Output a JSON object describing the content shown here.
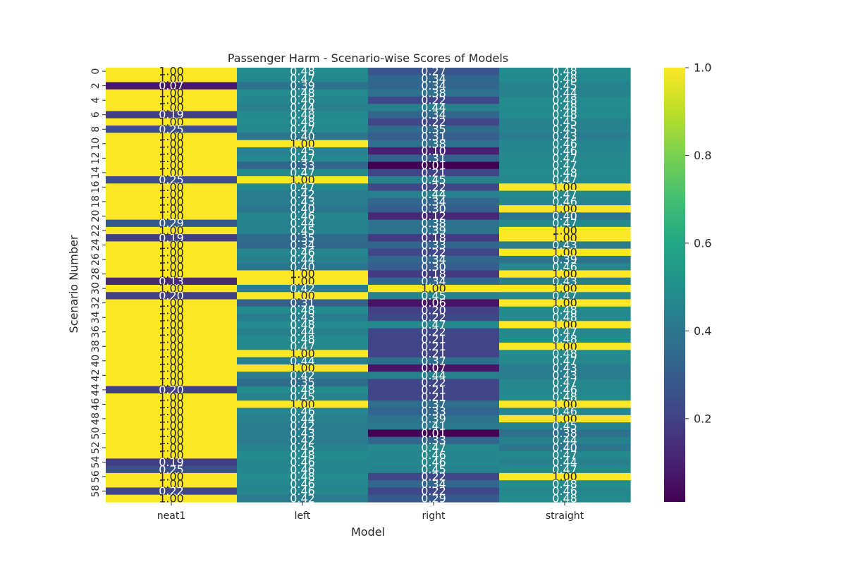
{
  "chart_data": {
    "type": "heatmap",
    "title": "Passenger Harm - Scenario-wise Scores of Models",
    "xlabel": "Model",
    "ylabel": "Scenario Number",
    "columns": [
      "neat1",
      "left",
      "right",
      "straight"
    ],
    "rows": [
      0,
      1,
      2,
      3,
      4,
      5,
      6,
      7,
      8,
      9,
      10,
      11,
      12,
      13,
      14,
      15,
      16,
      17,
      18,
      19,
      20,
      21,
      22,
      23,
      24,
      25,
      26,
      27,
      28,
      29,
      30,
      31,
      32,
      33,
      34,
      35,
      36,
      37,
      38,
      39,
      40,
      41,
      42,
      43,
      44,
      45,
      46,
      47,
      48,
      49,
      50,
      51,
      52,
      53,
      54,
      55,
      56,
      57,
      58,
      59
    ],
    "row_tick_labels": [
      "0",
      "2",
      "4",
      "6",
      "8",
      "10",
      "12",
      "14",
      "16",
      "18",
      "20",
      "22",
      "24",
      "26",
      "28",
      "30",
      "32",
      "34",
      "36",
      "38",
      "40",
      "42",
      "44",
      "46",
      "48",
      "50",
      "52",
      "54",
      "56",
      "58"
    ],
    "values": [
      [
        1.0,
        0.48,
        0.27,
        0.48
      ],
      [
        1.0,
        0.47,
        0.34,
        0.48
      ],
      [
        0.07,
        0.39,
        0.34,
        0.45
      ],
      [
        1.0,
        0.48,
        0.38,
        0.44
      ],
      [
        1.0,
        0.46,
        0.22,
        0.48
      ],
      [
        1.0,
        0.44,
        0.44,
        0.48
      ],
      [
        0.19,
        0.48,
        0.34,
        0.48
      ],
      [
        1.0,
        0.48,
        0.22,
        0.45
      ],
      [
        0.25,
        0.47,
        0.35,
        0.45
      ],
      [
        1.0,
        0.4,
        0.31,
        0.43
      ],
      [
        1.0,
        1.0,
        0.38,
        0.46
      ],
      [
        1.0,
        0.45,
        0.1,
        0.46
      ],
      [
        1.0,
        0.47,
        0.31,
        0.47
      ],
      [
        1.0,
        0.33,
        0.01,
        0.47
      ],
      [
        1.0,
        0.47,
        0.21,
        0.48
      ],
      [
        0.25,
        1.0,
        0.45,
        0.47
      ],
      [
        1.0,
        0.47,
        0.22,
        1.0
      ],
      [
        1.0,
        0.42,
        0.44,
        0.47
      ],
      [
        1.0,
        0.43,
        0.34,
        0.46
      ],
      [
        1.0,
        0.4,
        0.3,
        1.0
      ],
      [
        1.0,
        0.46,
        0.12,
        0.4
      ],
      [
        0.29,
        0.44,
        0.38,
        0.47
      ],
      [
        1.0,
        0.45,
        0.39,
        1.0
      ],
      [
        0.19,
        0.35,
        0.18,
        1.0
      ],
      [
        1.0,
        0.34,
        0.33,
        0.43
      ],
      [
        1.0,
        0.46,
        0.22,
        1.0
      ],
      [
        1.0,
        0.44,
        0.34,
        0.39
      ],
      [
        1.0,
        0.4,
        0.3,
        0.46
      ],
      [
        1.0,
        1.0,
        0.18,
        1.0
      ],
      [
        0.13,
        1.0,
        0.34,
        0.43
      ],
      [
        1.0,
        0.42,
        1.0,
        1.0
      ],
      [
        0.2,
        1.0,
        0.45,
        0.47
      ],
      [
        1.0,
        0.31,
        0.06,
        1.0
      ],
      [
        1.0,
        0.48,
        0.2,
        0.48
      ],
      [
        1.0,
        0.43,
        0.22,
        0.48
      ],
      [
        1.0,
        0.48,
        0.47,
        1.0
      ],
      [
        1.0,
        0.44,
        0.22,
        0.47
      ],
      [
        1.0,
        0.48,
        0.21,
        0.48
      ],
      [
        1.0,
        0.47,
        0.21,
        1.0
      ],
      [
        1.0,
        1.0,
        0.21,
        0.48
      ],
      [
        1.0,
        0.44,
        0.37,
        0.47
      ],
      [
        1.0,
        1.0,
        0.07,
        0.43
      ],
      [
        1.0,
        0.42,
        0.44,
        0.43
      ],
      [
        1.0,
        0.35,
        0.22,
        0.47
      ],
      [
        0.2,
        0.48,
        0.21,
        0.46
      ],
      [
        1.0,
        0.45,
        0.21,
        0.48
      ],
      [
        1.0,
        1.0,
        0.37,
        1.0
      ],
      [
        1.0,
        0.46,
        0.33,
        0.46
      ],
      [
        1.0,
        0.44,
        0.39,
        1.0
      ],
      [
        1.0,
        0.42,
        0.41,
        0.45
      ],
      [
        1.0,
        0.43,
        0.01,
        0.38
      ],
      [
        1.0,
        0.42,
        0.33,
        0.44
      ],
      [
        1.0,
        0.45,
        0.47,
        0.4
      ],
      [
        1.0,
        0.48,
        0.46,
        0.47
      ],
      [
        0.19,
        0.46,
        0.46,
        0.44
      ],
      [
        0.25,
        0.46,
        0.45,
        0.47
      ],
      [
        1.0,
        0.48,
        0.22,
        1.0
      ],
      [
        1.0,
        0.46,
        0.34,
        0.48
      ],
      [
        0.22,
        0.46,
        0.22,
        0.46
      ],
      [
        1.0,
        0.42,
        0.29,
        0.48
      ]
    ],
    "colormap": "viridis",
    "value_format": "0.00",
    "colorbar": {
      "range": [
        0.01,
        1.0
      ],
      "ticks": [
        "0.2",
        "0.4",
        "0.6",
        "0.8",
        "1.0"
      ]
    },
    "grid": false,
    "legend": "colorbar-right"
  }
}
